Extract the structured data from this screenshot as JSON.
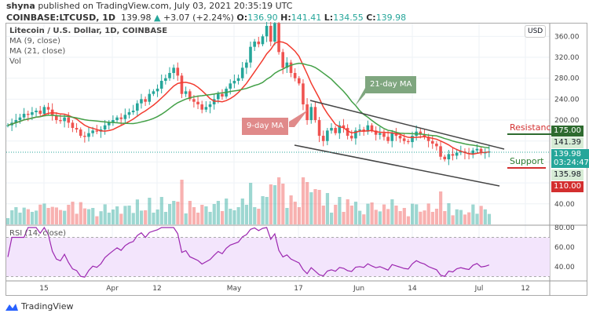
{
  "header": {
    "publisher": "shyna",
    "published_text": "published on TradingView.com, July 03, 2021 20:35:19 UTC",
    "symbol": "COINBASE:LTCUSD, 1D",
    "last": "139.98",
    "change": "+3.07 (+2.24%)",
    "o_label": "O:",
    "o": "136.90",
    "h_label": "H:",
    "h": "141.41",
    "l_label": "L:",
    "l": "134.55",
    "c_label": "C:",
    "c": "139.98"
  },
  "legend": {
    "title": "Litecoin / U.S. Dollar, 1D, COINBASE",
    "ma9": "MA (9, close)",
    "ma21": "MA (21, close)",
    "vol": "Vol",
    "rsi": "RSI (14, close)"
  },
  "annotations": {
    "ma21": "21-day MA",
    "ma9": "9-day MA",
    "resistance": "Resistance",
    "support": "Support"
  },
  "price_axis": {
    "currency": "USD",
    "ticks": [
      "360.00",
      "320.00",
      "280.00",
      "240.00",
      "200.00",
      "40.00"
    ],
    "badges": {
      "resistance": "175.00",
      "high": "141.39",
      "last": "139.98",
      "countdown": "03:24:47",
      "low": "135.98",
      "support": "110.00"
    }
  },
  "rsi_axis": {
    "ticks": [
      "80.00",
      "60.00",
      "40.00"
    ]
  },
  "time_axis": [
    "15",
    "Apr",
    "12",
    "May",
    "17",
    "Jun",
    "14",
    "Jul",
    "12"
  ],
  "brand": "TradingView",
  "colors": {
    "up": "#26a69a",
    "down": "#ef5350",
    "ma9": "#f23b2f",
    "ma21": "#43a047",
    "rsi": "#9c27b0",
    "resistance_badge": "#2e6b2f",
    "support_badge": "#d32f2f",
    "last_badge": "#26a69a"
  },
  "chart_data": {
    "type": "candlestick",
    "title": "Litecoin / U.S. Dollar, 1D, COINBASE",
    "ylim": [
      20,
      370
    ],
    "grid": true,
    "closes": [
      190,
      195,
      200,
      205,
      212,
      210,
      215,
      218,
      212,
      225,
      220,
      208,
      200,
      198,
      205,
      195,
      185,
      182,
      170,
      168,
      175,
      180,
      178,
      182,
      190,
      195,
      200,
      205,
      202,
      210,
      215,
      218,
      232,
      240,
      235,
      250,
      255,
      260,
      275,
      280,
      290,
      300,
      285,
      250,
      255,
      240,
      235,
      230,
      220,
      225,
      230,
      240,
      250,
      245,
      260,
      270,
      275,
      280,
      300,
      310,
      340,
      350,
      345,
      360,
      380,
      350,
      385,
      330,
      300,
      310,
      290,
      280,
      270,
      230,
      200,
      225,
      200,
      170,
      160,
      180,
      185,
      175,
      190,
      185,
      170,
      165,
      180,
      182,
      178,
      190,
      180,
      172,
      175,
      168,
      160,
      175,
      170,
      165,
      160,
      158,
      170,
      178,
      172,
      168,
      160,
      155,
      150,
      130,
      125,
      135,
      132,
      138,
      140,
      137,
      135,
      142,
      145,
      137,
      138,
      139.98
    ],
    "indicators": [
      "MA 9",
      "MA 21",
      "Volume",
      "RSI 14"
    ],
    "levels": {
      "resistance": 175,
      "support": 110
    },
    "rsi_bands": [
      30,
      70
    ]
  }
}
